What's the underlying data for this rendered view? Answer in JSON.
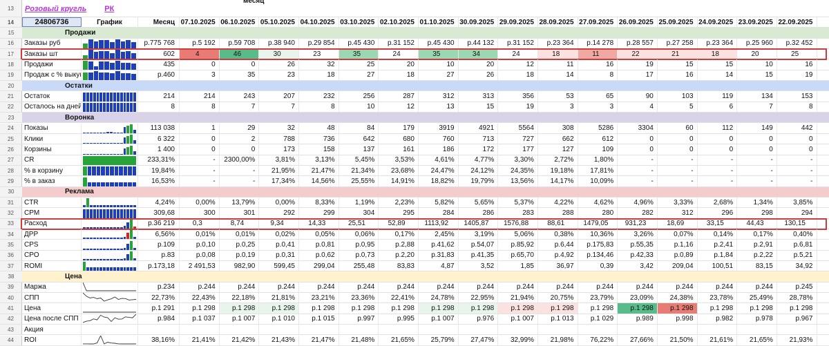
{
  "top": {
    "title": "Розовый кругль",
    "link": "РК",
    "month_label": "месяц"
  },
  "header": {
    "row_num": "14",
    "id": "24806736",
    "graph": "График",
    "month": "Месяц",
    "dates": [
      "07.10.2025",
      "06.10.2025",
      "05.10.2025",
      "04.10.2025",
      "03.10.2025",
      "02.10.2025",
      "01.10.2025",
      "30.09.2025",
      "29.09.2025",
      "28.09.2025",
      "27.09.2025",
      "26.09.2025",
      "25.09.2025",
      "24.09.2025",
      "23.09.2025",
      "22.09.2025"
    ]
  },
  "colors": {
    "section_sales": "#d9ead3",
    "section_stock": "#c9daf8",
    "section_funnel": "#d9d2e9",
    "section_ads": "#f4cccc",
    "section_price": "#fff2cc",
    "bar_blue": "#1f3fb8",
    "bar_green": "#27a33a",
    "bar_red": "#e02020",
    "highlight": "#d03a3a",
    "green_strong": "#57bb8a",
    "green_mid": "#9ad7b3",
    "green_light": "#e7f5ec",
    "red_strong": "#e67c73",
    "red_mid": "#f0a8a2",
    "red_light": "#fbe1df"
  },
  "rows": [
    {
      "n": "13",
      "type": "top"
    },
    {
      "n": "14",
      "type": "header"
    },
    {
      "n": "15",
      "type": "section",
      "label": "Продажи",
      "color": "section_sales"
    },
    {
      "n": "16",
      "label": "Заказы руб",
      "graph": "bars",
      "bars": [
        5,
        9,
        7,
        8,
        8,
        6,
        9,
        7,
        8,
        6
      ],
      "barcolors": [
        "g",
        "b",
        "b",
        "b",
        "b",
        "b",
        "b",
        "b",
        "b",
        "b"
      ],
      "month": "р.775 768",
      "cells": [
        "р.5 192",
        "р.59 708",
        "р.38 940",
        "р.29 854",
        "р.45 430",
        "р.31 152",
        "р.45 430",
        "р.44 132",
        "р.31 152",
        "р.23 364",
        "р.14 278",
        "р.28 557",
        "р.27 258",
        "р.23 364",
        "р.25 960",
        "р.32 452"
      ]
    },
    {
      "n": "17",
      "label": "Заказы шт",
      "graph": "bars",
      "bars": [
        4,
        9,
        7,
        8,
        8,
        6,
        9,
        7,
        8,
        6
      ],
      "barcolors": [
        "g",
        "b",
        "b",
        "b",
        "b",
        "b",
        "b",
        "b",
        "b",
        "b"
      ],
      "month": "602",
      "cells": [
        "4",
        "46",
        "30",
        "23",
        "35",
        "24",
        "35",
        "34",
        "24",
        "18",
        "11",
        "22",
        "21",
        "18",
        "20",
        "25"
      ],
      "fills": [
        "red_strong",
        "green_strong",
        "green_light",
        "",
        "green_mid",
        "",
        "green_mid",
        "green_mid",
        "",
        "red_light",
        "red_mid",
        "red_light",
        "red_light",
        "red_light",
        "",
        ""
      ],
      "highlight": true
    },
    {
      "n": "18",
      "label": "Продажи",
      "graph": "bars",
      "bars": [
        9,
        8,
        3,
        8,
        8,
        7,
        9,
        7,
        7,
        6
      ],
      "barcolors": [
        "g",
        "b",
        "b",
        "b",
        "b",
        "b",
        "b",
        "b",
        "b",
        "b"
      ],
      "month": "435",
      "cells": [
        "0",
        "0",
        "26",
        "32",
        "25",
        "20",
        "10",
        "20",
        "12",
        "11",
        "16",
        "19",
        "15",
        "15",
        "10",
        "16"
      ]
    },
    {
      "n": "19",
      "label": "Продаж с % выкуп",
      "graph": "bars",
      "bars": [
        8,
        8,
        9,
        8,
        8,
        7,
        9,
        7,
        7,
        6
      ],
      "barcolors": [
        "g",
        "b",
        "b",
        "b",
        "b",
        "b",
        "b",
        "b",
        "b",
        "b"
      ],
      "month": "р.460",
      "cells": [
        "3",
        "35",
        "23",
        "18",
        "27",
        "18",
        "27",
        "26",
        "18",
        "14",
        "8",
        "17",
        "16",
        "14",
        "15",
        "19"
      ]
    },
    {
      "n": "20",
      "type": "section",
      "label": "Остатки",
      "color": "section_stock"
    },
    {
      "n": "21",
      "label": "Остаток",
      "graph": "bars",
      "bars": [
        5,
        5,
        5,
        5,
        5,
        5,
        5,
        5,
        5,
        5,
        5,
        5,
        5,
        5,
        5,
        5
      ],
      "barcolors": [
        "b"
      ],
      "month": "214",
      "cells": [
        "214",
        "243",
        "207",
        "232",
        "256",
        "287",
        "312",
        "313",
        "356",
        "53",
        "65",
        "90",
        "103",
        "119",
        "134",
        "153"
      ]
    },
    {
      "n": "22",
      "label": "Осталось на дней",
      "graph": "bars",
      "bars": [
        5,
        5,
        5,
        5,
        5,
        5,
        5,
        5,
        5,
        5,
        5,
        5,
        5,
        5,
        5,
        5
      ],
      "barcolors": [
        "b"
      ],
      "month": "8",
      "cells": [
        "8",
        "7",
        "7",
        "8",
        "10",
        "12",
        "13",
        "15",
        "19",
        "3",
        "3",
        "4",
        "5",
        "6",
        "7",
        "8"
      ]
    },
    {
      "n": "23",
      "type": "section",
      "label": "Воронка",
      "color": "section_funnel"
    },
    {
      "n": "24",
      "label": "Показы",
      "graph": "bars",
      "bars": [
        1,
        1,
        1,
        1,
        1,
        1,
        1,
        2,
        2,
        1,
        1,
        1,
        9,
        11,
        13,
        5
      ],
      "barcolors": [
        "b",
        "b",
        "b",
        "b",
        "b",
        "b",
        "b",
        "b",
        "b",
        "b",
        "b",
        "b",
        "b",
        "g",
        "g",
        "b"
      ],
      "month": "113 038",
      "cells": [
        "1",
        "29",
        "32",
        "48",
        "84",
        "179",
        "3919",
        "4921",
        "5564",
        "308",
        "5286",
        "3304",
        "60",
        "112",
        "149",
        "442"
      ]
    },
    {
      "n": "25",
      "label": "Клики",
      "graph": "bars",
      "bars": [
        1,
        1,
        1,
        1,
        1,
        1,
        1,
        1,
        1,
        1,
        1,
        1,
        9,
        11,
        13,
        5
      ],
      "barcolors": [
        "b",
        "b",
        "b",
        "b",
        "b",
        "b",
        "b",
        "b",
        "b",
        "b",
        "b",
        "b",
        "b",
        "g",
        "g",
        "b"
      ],
      "month": "6 322",
      "cells": [
        "0",
        "2",
        "788",
        "736",
        "642",
        "680",
        "760",
        "713",
        "727",
        "662",
        "612",
        "0",
        "0",
        "0",
        "0",
        "0"
      ]
    },
    {
      "n": "26",
      "label": "Корзины",
      "graph": "bars",
      "bars": [
        1,
        1,
        1,
        1,
        1,
        1,
        1,
        1,
        1,
        1,
        1,
        1,
        9,
        11,
        13,
        5
      ],
      "barcolors": [
        "b",
        "b",
        "b",
        "b",
        "b",
        "b",
        "b",
        "b",
        "b",
        "b",
        "b",
        "b",
        "b",
        "g",
        "g",
        "b"
      ],
      "month": "1 400",
      "cells": [
        "0",
        "0",
        "173",
        "158",
        "137",
        "161",
        "186",
        "172",
        "177",
        "127",
        "109",
        "0",
        "0",
        "0",
        "0",
        "0"
      ]
    },
    {
      "n": "27",
      "label": "CR",
      "graph": "bars",
      "bars": [
        13
      ],
      "barcolors": [
        "g"
      ],
      "month": "233,31%",
      "cells": [
        "-",
        "2300,00%",
        "3,81%",
        "3,13%",
        "5,45%",
        "3,53%",
        "4,61%",
        "4,77%",
        "3,30%",
        "2,72%",
        "1,80%",
        "-",
        "-",
        "-",
        "-",
        "-"
      ]
    },
    {
      "n": "28",
      "label": "% в корзину",
      "graph": "bars",
      "bars": [
        9,
        9,
        9,
        9,
        9,
        9,
        9,
        9,
        9,
        9,
        9,
        9
      ],
      "barcolors": [
        "g",
        "b",
        "b",
        "b",
        "b",
        "b",
        "b",
        "b",
        "b",
        "b",
        "b",
        "b"
      ],
      "month": "19,84%",
      "cells": [
        "-",
        "-",
        "21,95%",
        "21,47%",
        "21,34%",
        "23,68%",
        "24,47%",
        "24,12%",
        "24,35%",
        "19,18%",
        "17,81%",
        "-",
        "-",
        "-",
        "-",
        "-"
      ]
    },
    {
      "n": "29",
      "label": "% в заказ",
      "graph": "bars",
      "bars": [
        13,
        6,
        6,
        6,
        6,
        6,
        6,
        6,
        6,
        6,
        6,
        6
      ],
      "barcolors": [
        "g",
        "b",
        "b",
        "b",
        "b",
        "b",
        "b",
        "b",
        "b",
        "b",
        "b",
        "b"
      ],
      "month": "16,53%",
      "cells": [
        "-",
        "-",
        "17,34%",
        "14,56%",
        "25,55%",
        "14,91%",
        "18,82%",
        "19,79%",
        "13,56%",
        "14,17%",
        "10,09%",
        "-",
        "-",
        "-",
        "-",
        "-"
      ]
    },
    {
      "n": "30",
      "type": "section",
      "label": "Реклама",
      "color": "section_ads"
    },
    {
      "n": "31",
      "label": "CTR",
      "graph": "bars",
      "bars": [
        3,
        13,
        3,
        3,
        3,
        3,
        3,
        3,
        3,
        3,
        3,
        3,
        3,
        3,
        3,
        3
      ],
      "barcolors": [
        "b",
        "g",
        "b",
        "b",
        "b",
        "b",
        "b",
        "b",
        "b",
        "b",
        "b",
        "b",
        "b",
        "b",
        "b",
        "b"
      ],
      "month": "4,24%",
      "cells": [
        "0,00%",
        "13,79%",
        "0,00%",
        "8,33%",
        "1,19%",
        "2,23%",
        "5,82%",
        "5,65%",
        "5,37%",
        "4,22%",
        "4,62%",
        "4,96%",
        "3,33%",
        "2,68%",
        "1,34%",
        "3,85%"
      ]
    },
    {
      "n": "32",
      "label": "CPM",
      "graph": "bars",
      "bars": [
        8,
        8,
        8,
        8,
        8,
        8,
        8,
        8,
        8,
        8,
        8,
        8,
        8,
        8,
        8,
        8
      ],
      "barcolors": [
        "b"
      ],
      "month": "309,68",
      "cells": [
        "300",
        "301",
        "292",
        "299",
        "304",
        "295",
        "284",
        "286",
        "283",
        "288",
        "280",
        "282",
        "312",
        "296",
        "298",
        "294"
      ]
    },
    {
      "n": "33",
      "label": "Расход",
      "graph": "bars",
      "bars": [
        2,
        2,
        2,
        2,
        2,
        2,
        2,
        2,
        2,
        2,
        2,
        2,
        4,
        8,
        12,
        3
      ],
      "barcolors": [
        "b",
        "b",
        "b",
        "b",
        "b",
        "b",
        "b",
        "b",
        "b",
        "b",
        "b",
        "b",
        "b",
        "b",
        "g",
        "r"
      ],
      "month": "р.36 219",
      "cells": [
        "0,3",
        "8,74",
        "9,34",
        "14,33",
        "25,51",
        "52,89",
        "1113,92",
        "1405,87",
        "1576,88",
        "88,61",
        "1479,05",
        "931,23",
        "18,69",
        "33,15",
        "44,43",
        "130,15"
      ],
      "highlight": true
    },
    {
      "n": "34",
      "label": "ДРР",
      "graph": "bars",
      "bars": [
        2,
        2,
        2,
        2,
        2,
        2,
        2,
        2,
        2,
        2,
        2,
        2,
        3,
        9,
        13,
        3
      ],
      "barcolors": [
        "b",
        "b",
        "b",
        "b",
        "b",
        "b",
        "b",
        "b",
        "b",
        "b",
        "b",
        "b",
        "b",
        "r",
        "g",
        "b"
      ],
      "month": "6,56%",
      "cells": [
        "0,01%",
        "0,01%",
        "0,02%",
        "0,05%",
        "0,06%",
        "0,17%",
        "2,45%",
        "3,19%",
        "5,06%",
        "0,38%",
        "10,36%",
        "3,26%",
        "0,07%",
        "0,14%",
        "0,17%",
        "0,40%"
      ]
    },
    {
      "n": "35",
      "label": "CPS",
      "graph": "bars",
      "bars": [
        2,
        2,
        2,
        2,
        2,
        2,
        2,
        2,
        2,
        2,
        2,
        2,
        3,
        9,
        13,
        3
      ],
      "barcolors": [
        "b",
        "b",
        "b",
        "b",
        "b",
        "b",
        "b",
        "b",
        "b",
        "b",
        "b",
        "b",
        "b",
        "b",
        "g",
        "b"
      ],
      "month": "р.109",
      "cells": [
        "р.0,10",
        "р.0,25",
        "р.0,41",
        "р.0,81",
        "р.0,95",
        "р.2,88",
        "р.41,62",
        "р.54,07",
        "р.85,92",
        "р.6,44",
        "р.175,83",
        "р.55,35",
        "р.1,16",
        "р.2,41",
        "р.2,91",
        "р.6,81"
      ]
    },
    {
      "n": "36",
      "label": "CPO",
      "graph": "bars",
      "bars": [
        2,
        2,
        2,
        2,
        2,
        2,
        2,
        2,
        2,
        2,
        2,
        2,
        3,
        9,
        13,
        3
      ],
      "barcolors": [
        "b",
        "b",
        "b",
        "b",
        "b",
        "b",
        "b",
        "b",
        "b",
        "b",
        "b",
        "b",
        "b",
        "b",
        "g",
        "b"
      ],
      "month": "р.83",
      "cells": [
        "р.0,08",
        "р.0,19",
        "р.0,31",
        "р.0,62",
        "р.0,73",
        "р.2,20",
        "р.31,83",
        "р.41,35",
        "р.65,70",
        "р.4,92",
        "р.134,46",
        "р.42,33",
        "р.0,89",
        "р.1,84",
        "р.2,22",
        "р.5,21"
      ]
    },
    {
      "n": "37",
      "label": "ROMI",
      "graph": "bars",
      "bars": [
        13,
        5,
        5,
        5,
        5,
        5,
        5,
        5,
        5,
        5,
        5,
        5,
        5,
        5,
        5,
        5
      ],
      "barcolors": [
        "g",
        "b",
        "b",
        "b",
        "b",
        "b",
        "b",
        "b",
        "b",
        "b",
        "b",
        "b",
        "b",
        "b",
        "b",
        "b"
      ],
      "month": "р.173,18",
      "cells": [
        "2 491,53",
        "982,90",
        "599,45",
        "299,04",
        "255,48",
        "83,83",
        "4,87",
        "3,52",
        "1,85",
        "36,97",
        "0,39",
        "3,42",
        "209,04",
        "100,51",
        "83,15",
        "34,92"
      ]
    },
    {
      "n": "38",
      "type": "section",
      "label": "Цена",
      "color": "section_price"
    },
    {
      "n": "39",
      "label": "Маржа",
      "graph": "spark",
      "month": "р.234",
      "cells": [
        "р.244",
        "р.244",
        "р.244",
        "р.244",
        "р.244",
        "р.244",
        "р.244",
        "р.244",
        "р.244",
        "р.244",
        "р.244",
        "р.244",
        "р.244",
        "р.244",
        "р.244",
        "р.245"
      ]
    },
    {
      "n": "40",
      "label": "СПП",
      "graph": "spark",
      "month": "22,73%",
      "cells": [
        "22,43%",
        "22,18%",
        "21,81%",
        "23,21%",
        "23,36%",
        "22,41%",
        "24,78%",
        "22,95%",
        "21,94%",
        "20,75%",
        "23,79%",
        "23,09%",
        "24,38%",
        "23,78%",
        "25,49%",
        "28,78%"
      ]
    },
    {
      "n": "41",
      "label": "Цена",
      "graph": "spark",
      "month": "р.1 291",
      "cells": [
        "р.1 298",
        "р.1 298",
        "р.1 298",
        "р.1 298",
        "р.1 298",
        "р.1 298",
        "р.1 298",
        "р.1 298",
        "р.1 298",
        "р.1 298",
        "р.1 298",
        "р.1 298",
        "р.1 298",
        "р.1 298",
        "р.1 298",
        "р.1 298"
      ],
      "fills": [
        "",
        "green_light",
        "green_light",
        "",
        "",
        "",
        "green_light",
        "green_light",
        "red_light",
        "red_light",
        "",
        "green_strong",
        "red_strong",
        "",
        "",
        ""
      ]
    },
    {
      "n": "42",
      "label": "Цена после СПП",
      "graph": "spark",
      "month": "р.984",
      "cells": [
        "р.1 037",
        "р.1 007",
        "р.1 010",
        "р.1 015",
        "р.997",
        "р.995",
        "р.1 007",
        "р.976",
        "р.1 007",
        "р.1 013",
        "р.1 029",
        "р.989",
        "р.998",
        "р.982",
        "р.978",
        "р.967"
      ]
    },
    {
      "n": "43",
      "label": "Акция",
      "graph": "",
      "month": "",
      "cells": [
        "",
        "",
        "",
        "",
        "",
        "",
        "",
        "",
        "",
        "",
        "",
        "",
        "",
        "",
        "",
        ""
      ]
    },
    {
      "n": "44",
      "label": "ROI",
      "graph": "spark",
      "month": "38,16%",
      "cells": [
        "21,41%",
        "21,42%",
        "21,43%",
        "21,47%",
        "21,48%",
        "21,65%",
        "25,79%",
        "27,47%",
        "32,99%",
        "21,98%",
        "76,22%",
        "27,66%",
        "21,50%",
        "21,61%",
        "21,65%",
        "21,93%"
      ]
    }
  ]
}
